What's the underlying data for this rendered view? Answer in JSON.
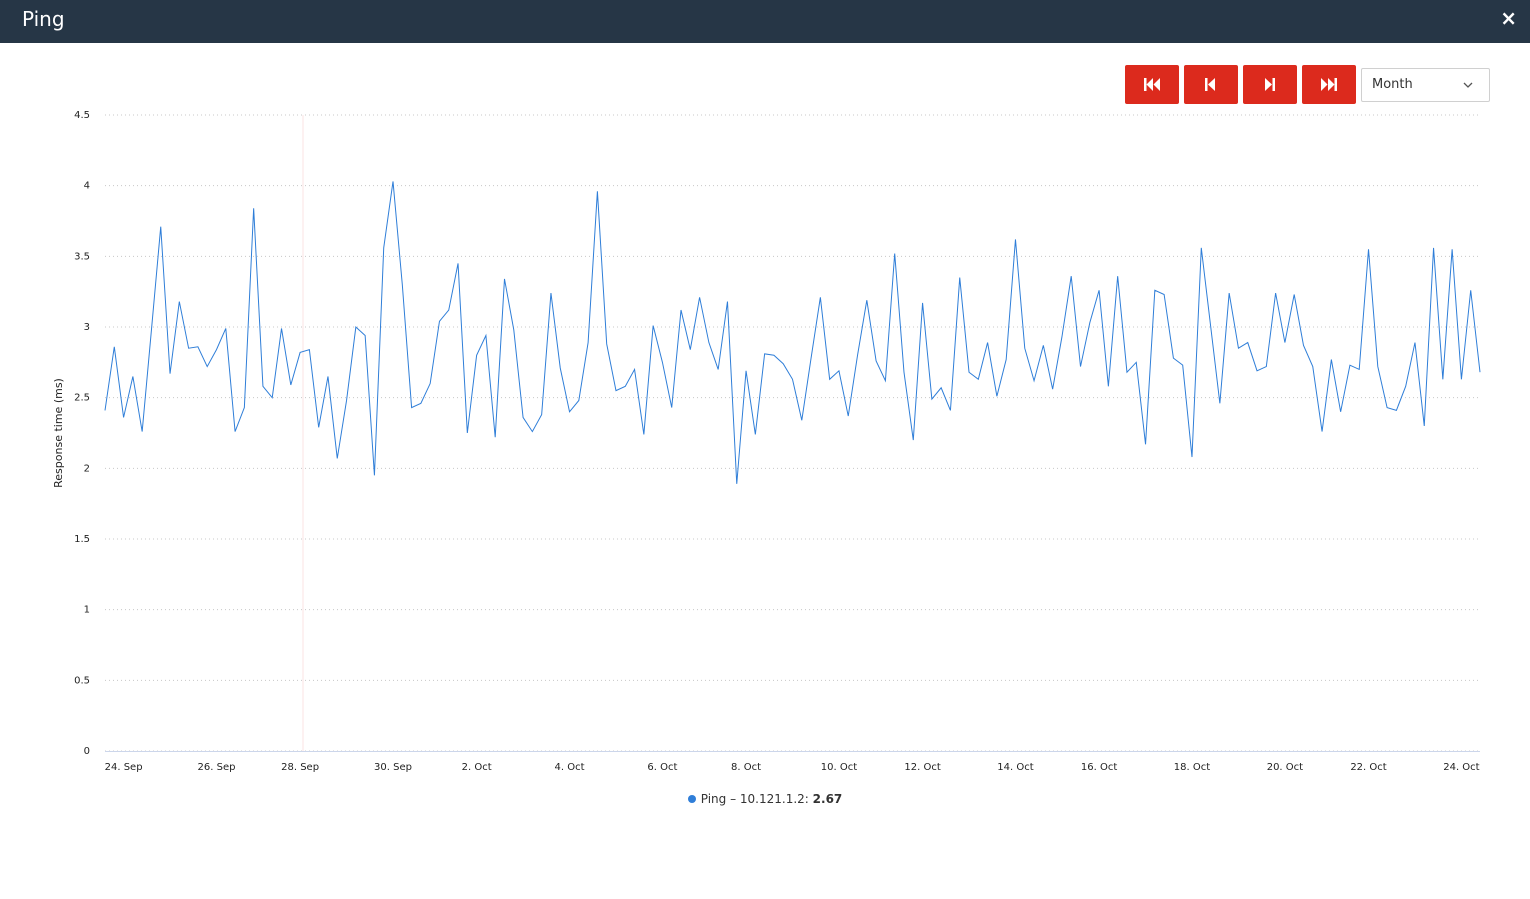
{
  "header": {
    "title": "Ping",
    "close": "×"
  },
  "controls": {
    "period": "Month"
  },
  "chart_data": {
    "type": "line",
    "y_label": "Response time (ms)",
    "ylim": [
      0,
      4.5
    ],
    "yticks": [
      0,
      0.5,
      1,
      1.5,
      2,
      2.5,
      3,
      3.5,
      4,
      4.5
    ],
    "grid": true,
    "categories": [
      null,
      null,
      "24. Sep",
      null,
      null,
      null,
      null,
      null,
      null,
      null,
      null,
      null,
      "26. Sep",
      null,
      null,
      null,
      null,
      null,
      null,
      null,
      null,
      "28. Sep",
      null,
      null,
      null,
      null,
      null,
      null,
      null,
      null,
      null,
      "30. Sep",
      null,
      null,
      null,
      null,
      null,
      null,
      null,
      null,
      "2. Oct",
      null,
      null,
      null,
      null,
      null,
      null,
      null,
      null,
      null,
      "4. Oct",
      null,
      null,
      null,
      null,
      null,
      null,
      null,
      null,
      null,
      "6. Oct",
      null,
      null,
      null,
      null,
      null,
      null,
      null,
      null,
      "8. Oct",
      null,
      null,
      null,
      null,
      null,
      null,
      null,
      null,
      null,
      "10. Oct",
      null,
      null,
      null,
      null,
      null,
      null,
      null,
      null,
      "12. Oct",
      null,
      null,
      null,
      null,
      null,
      null,
      null,
      null,
      null,
      "14. Oct",
      null,
      null,
      null,
      null,
      null,
      null,
      null,
      null,
      "16. Oct",
      null,
      null,
      null,
      null,
      null,
      null,
      null,
      null,
      null,
      "18. Oct",
      null,
      null,
      null,
      null,
      null,
      null,
      null,
      null,
      null,
      "20. Oct",
      null,
      null,
      null,
      null,
      null,
      null,
      null,
      null,
      "22. Oct",
      null,
      null,
      null,
      null,
      null,
      null,
      null,
      null,
      null,
      "24. Oct",
      null,
      null
    ],
    "series": [
      {
        "name": "Ping – 10.121.1.2:",
        "legend_value": "2.67",
        "color": "#2f7ed8",
        "values": [
          2.41,
          2.86,
          2.36,
          2.65,
          2.26,
          2.98,
          3.71,
          2.67,
          3.18,
          2.85,
          2.86,
          2.72,
          2.84,
          2.99,
          2.26,
          2.43,
          3.84,
          2.58,
          2.5,
          2.99,
          2.59,
          2.82,
          2.84,
          2.29,
          2.65,
          2.07,
          2.48,
          3.0,
          2.94,
          1.95,
          3.56,
          4.03,
          3.3,
          2.43,
          2.46,
          2.6,
          3.04,
          3.12,
          3.45,
          2.25,
          2.8,
          2.94,
          2.22,
          3.34,
          2.98,
          2.36,
          2.26,
          2.38,
          3.24,
          2.71,
          2.4,
          2.48,
          2.89,
          3.96,
          2.88,
          2.55,
          2.58,
          2.7,
          2.24,
          3.01,
          2.75,
          2.43,
          3.12,
          2.84,
          3.21,
          2.89,
          2.7,
          3.18,
          1.89,
          2.69,
          2.24,
          2.81,
          2.8,
          2.74,
          2.63,
          2.34,
          2.78,
          3.21,
          2.63,
          2.69,
          2.37,
          2.8,
          3.19,
          2.76,
          2.62,
          3.52,
          2.68,
          2.2,
          3.17,
          2.49,
          2.57,
          2.41,
          3.35,
          2.68,
          2.63,
          2.89,
          2.51,
          2.77,
          3.62,
          2.85,
          2.62,
          2.87,
          2.56,
          2.93,
          3.36,
          2.72,
          3.03,
          3.26,
          2.58,
          3.36,
          2.68,
          2.75,
          2.17,
          3.26,
          3.23,
          2.78,
          2.73,
          2.08,
          3.56,
          3.01,
          2.46,
          3.24,
          2.85,
          2.89,
          2.69,
          2.72,
          3.24,
          2.89,
          3.23,
          2.87,
          2.72,
          2.26,
          2.77,
          2.4,
          2.73,
          2.7,
          3.55,
          2.72,
          2.43,
          2.41,
          2.58,
          2.89,
          2.3,
          3.56,
          2.63,
          3.55,
          2.63,
          3.26,
          2.68
        ]
      }
    ]
  }
}
